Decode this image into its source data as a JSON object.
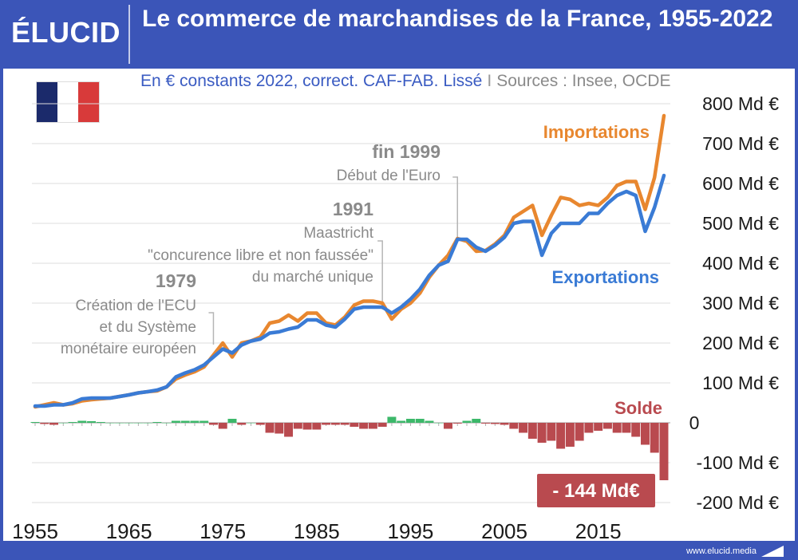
{
  "header": {
    "logo_text": "ÉLUCID",
    "title": "Le commerce de marchandises de la France, 1955-2022",
    "subtitle_main": "En € constants 2022, correct. CAF-FAB. Lissé",
    "subtitle_sep": "I",
    "subtitle_sources": "Sources : Insee, OCDE"
  },
  "footer": {
    "url": "www.elucid.media"
  },
  "colors": {
    "background": "#3b55b8",
    "imports": "#e8872f",
    "exports": "#3a7bd5",
    "balance_positive": "#3cb86a",
    "balance_negative": "#b94a4f",
    "annotation": "#8a8a8a",
    "grid": "#dcdcdc"
  },
  "chart_data": {
    "type": "line",
    "x": [
      1955,
      1956,
      1957,
      1958,
      1959,
      1960,
      1961,
      1962,
      1963,
      1964,
      1965,
      1966,
      1967,
      1968,
      1969,
      1970,
      1971,
      1972,
      1973,
      1974,
      1975,
      1976,
      1977,
      1978,
      1979,
      1980,
      1981,
      1982,
      1983,
      1984,
      1985,
      1986,
      1987,
      1988,
      1989,
      1990,
      1991,
      1992,
      1993,
      1994,
      1995,
      1996,
      1997,
      1998,
      1999,
      2000,
      2001,
      2002,
      2003,
      2004,
      2005,
      2006,
      2007,
      2008,
      2009,
      2010,
      2011,
      2012,
      2013,
      2014,
      2015,
      2016,
      2017,
      2018,
      2019,
      2020,
      2021,
      2022
    ],
    "series": [
      {
        "name": "Importations",
        "values": [
          40,
          45,
          50,
          45,
          48,
          55,
          58,
          60,
          62,
          66,
          70,
          75,
          78,
          80,
          90,
          110,
          120,
          128,
          140,
          170,
          200,
          165,
          200,
          205,
          215,
          250,
          255,
          270,
          255,
          275,
          275,
          250,
          245,
          265,
          295,
          305,
          305,
          300,
          260,
          285,
          300,
          325,
          365,
          395,
          420,
          462,
          455,
          430,
          432,
          448,
          470,
          515,
          530,
          545,
          470,
          520,
          565,
          560,
          545,
          550,
          545,
          565,
          595,
          605,
          605,
          535,
          615,
          770
        ]
      },
      {
        "name": "Exportations",
        "values": [
          42,
          42,
          45,
          45,
          50,
          60,
          62,
          62,
          62,
          66,
          70,
          75,
          78,
          82,
          90,
          115,
          125,
          133,
          145,
          165,
          185,
          175,
          195,
          205,
          210,
          225,
          228,
          235,
          240,
          258,
          258,
          245,
          240,
          260,
          285,
          290,
          290,
          290,
          275,
          290,
          310,
          335,
          370,
          395,
          405,
          460,
          460,
          440,
          430,
          445,
          465,
          500,
          505,
          505,
          420,
          475,
          500,
          500,
          500,
          525,
          525,
          550,
          570,
          580,
          570,
          480,
          540,
          620
        ]
      }
    ],
    "balance": {
      "name": "Solde",
      "values": [
        2,
        -3,
        -5,
        0,
        2,
        5,
        4,
        2,
        0,
        0,
        0,
        0,
        0,
        2,
        0,
        5,
        5,
        5,
        5,
        -5,
        -15,
        10,
        -5,
        0,
        -5,
        -25,
        -27,
        -35,
        -15,
        -17,
        -17,
        -5,
        -5,
        -5,
        -10,
        -15,
        -15,
        -10,
        15,
        5,
        10,
        10,
        5,
        0,
        -15,
        -2,
        5,
        10,
        -2,
        -3,
        -5,
        -15,
        -25,
        -40,
        -50,
        -45,
        -65,
        -60,
        -45,
        -25,
        -20,
        -15,
        -25,
        -25,
        -35,
        -55,
        -75,
        -144
      ]
    },
    "ylim": [
      -200,
      800
    ],
    "yticks": [
      800,
      700,
      600,
      500,
      400,
      300,
      200,
      100,
      0,
      -100,
      -200
    ],
    "ytick_labels": [
      "800 Md €",
      "700 Md €",
      "600 Md €",
      "500 Md €",
      "400 Md €",
      "300 Md €",
      "200 Md €",
      "100 Md €",
      "0",
      "-100 Md €",
      "-200 Md €"
    ],
    "xticks": [
      1955,
      1965,
      1975,
      1985,
      1995,
      2005,
      2015
    ],
    "xtick_labels": [
      "1955",
      "1965",
      "1975",
      "1985",
      "1995",
      "2005",
      "2015"
    ],
    "grid": true,
    "legend_labels": {
      "imports": "Importations",
      "exports": "Exportations",
      "balance": "Solde"
    },
    "final_balance_label": "- 144 Md€",
    "annotations": [
      {
        "year": 1979,
        "x_anchor": 1974,
        "title": "1979",
        "lines": [
          "Création de l'ECU",
          "et du Système",
          "monétaire européen"
        ]
      },
      {
        "year": 1991,
        "x_anchor": 1992,
        "title": "1991",
        "lines": [
          "Maastricht",
          "\"concurence libre et non faussée\"",
          "du marché unique"
        ]
      },
      {
        "year": 1999,
        "x_anchor": 2000,
        "title": "fin 1999",
        "lines": [
          "Début de l'Euro"
        ]
      }
    ]
  }
}
